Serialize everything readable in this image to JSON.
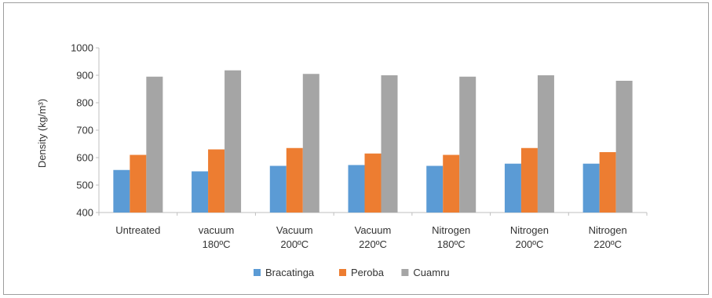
{
  "chart_data": {
    "type": "bar",
    "title": "",
    "xlabel": "",
    "ylabel": "Density (kg/m³)",
    "ylim": [
      400,
      1000
    ],
    "yticks": [
      400,
      500,
      600,
      700,
      800,
      900,
      1000
    ],
    "grid": false,
    "legend_position": "bottom",
    "categories": [
      [
        "Untreated"
      ],
      [
        "vacuum",
        "180ºC"
      ],
      [
        "Vacuum",
        "200ºC"
      ],
      [
        "Vacuum",
        "220ºC"
      ],
      [
        "Nitrogen",
        "180ºC"
      ],
      [
        "Nitrogen",
        "200ºC"
      ],
      [
        "Nitrogen",
        "220ºC"
      ]
    ],
    "series": [
      {
        "name": "Bracatinga",
        "color": "#5b9bd5",
        "values": [
          555,
          550,
          570,
          573,
          570,
          578,
          578
        ]
      },
      {
        "name": "Peroba",
        "color": "#ed7d31",
        "values": [
          610,
          630,
          635,
          615,
          610,
          635,
          620
        ]
      },
      {
        "name": "Cuamru",
        "color": "#a5a5a5",
        "values": [
          895,
          918,
          905,
          900,
          895,
          900,
          880
        ]
      }
    ]
  }
}
